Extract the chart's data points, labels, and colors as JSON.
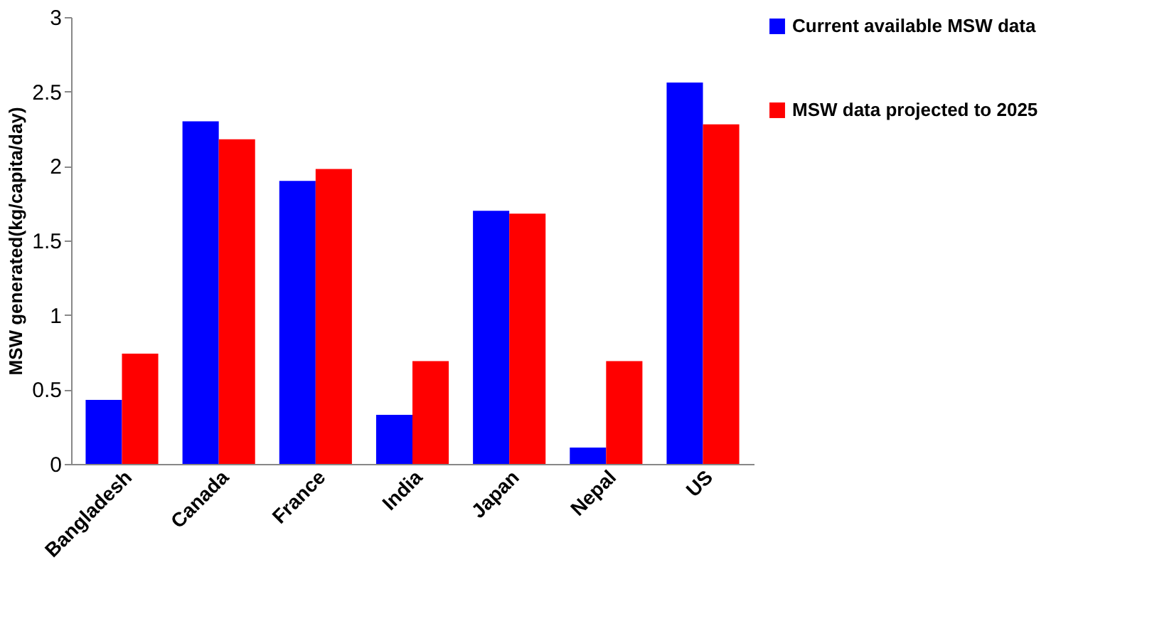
{
  "chart_data": {
    "type": "bar",
    "ylabel": "MSW generated(kg/capita/day)",
    "categories": [
      "Bangladesh",
      "Canada",
      "France",
      "India",
      "Japan",
      "Nepal",
      "US"
    ],
    "series": [
      {
        "name": "Current available MSW data",
        "color": "#0000ff",
        "values": [
          0.43,
          2.3,
          1.9,
          0.33,
          1.7,
          0.11,
          2.56
        ]
      },
      {
        "name": "MSW data projected to 2025",
        "color": "#ff0000",
        "values": [
          0.74,
          2.18,
          1.98,
          0.69,
          1.68,
          0.69,
          2.28
        ]
      }
    ],
    "ylim": [
      0,
      3
    ],
    "yticks": [
      0,
      0.5,
      1,
      1.5,
      2,
      2.5,
      3
    ],
    "grid": false,
    "legend": "right"
  }
}
